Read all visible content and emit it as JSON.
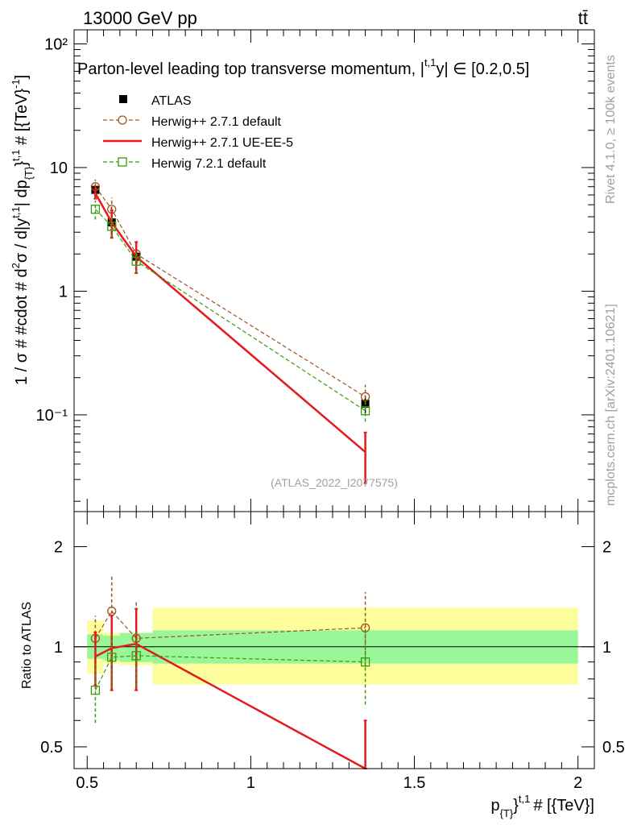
{
  "header": {
    "energy_label": "13000 GeV pp",
    "process_label": "tt̄"
  },
  "watermark": {
    "rivet": "Rivet 4.1.0, ≥ 100k events",
    "mcplots": "mcplots.cern.ch [arXiv:2401.10621]"
  },
  "chart_data": [
    {
      "type": "line",
      "panel": "main",
      "title": "Parton-level leading top transverse momentum, |y^{t,1}| ∈ [0.2,0.5]",
      "title_text": "Parton-level leading top transverse momentum, |",
      "title_sup": "t,1",
      "title_tail": "| ∈ [0.2,0.5]",
      "ylabel": "1 / σ # #cdot # d²σ / d|y^{t,1}| dp_{T}^{t,1} # [{TeV}]^{-1}",
      "ylabel_parts": {
        "a": "1 / σ # #cdot # d",
        "b": "2",
        "c": "σ / d|y",
        "d": "t,1",
        "e": "| dp",
        "f": "{T}",
        "g": "}",
        "h": "t,1",
        "i": " # [{TeV}",
        "j": "-1",
        "k": "]"
      },
      "yscale": "log",
      "ylim": [
        0.0165,
        130
      ],
      "xlim": [
        0.46,
        2.05
      ],
      "ytick_labels": [
        "10²",
        "10",
        "1",
        "10⁻¹"
      ],
      "ytick_values": [
        100,
        10,
        1,
        0.1
      ],
      "reference_label": "(ATLAS_2022_I2077575)",
      "legend_position": "top-left",
      "series": [
        {
          "name": "ATLAS",
          "style": "data",
          "color": "#000000",
          "x": [
            0.525,
            0.575,
            0.65,
            1.35
          ],
          "y": [
            6.6,
            3.6,
            1.9,
            0.123
          ],
          "yerr_lo": [
            0.5,
            0.3,
            0.2,
            0.02
          ],
          "yerr_hi": [
            0.5,
            0.3,
            0.2,
            0.02
          ]
        },
        {
          "name": "Herwig++ 2.7.1 default",
          "style": "dashed-circle",
          "color": "#a0521b",
          "x": [
            0.525,
            0.575,
            0.65,
            1.35
          ],
          "y": [
            7.0,
            4.6,
            2.0,
            0.14
          ],
          "yerr_lo": [
            0.7,
            0.9,
            0.5,
            0.03
          ],
          "yerr_hi": [
            1.0,
            1.1,
            0.5,
            0.035
          ]
        },
        {
          "name": "Herwig++ 2.7.1 UE-EE-5",
          "style": "solid",
          "color": "#e41a1c",
          "x": [
            0.525,
            0.575,
            0.65,
            1.35
          ],
          "y": [
            6.2,
            3.6,
            1.9,
            0.05
          ],
          "yerr_lo": [
            0.6,
            0.9,
            0.5,
            0.022
          ],
          "yerr_hi": [
            0.6,
            0.9,
            0.6,
            0.022
          ]
        },
        {
          "name": "Herwig 7.2.1 default",
          "style": "dashed-square",
          "color": "#3a9a0c",
          "x": [
            0.525,
            0.575,
            0.65,
            1.35
          ],
          "y": [
            4.6,
            3.35,
            1.75,
            0.108
          ],
          "yerr_lo": [
            0.8,
            0.6,
            0.35,
            0.02
          ],
          "yerr_hi": [
            0.8,
            0.6,
            0.35,
            0.02
          ]
        }
      ]
    },
    {
      "type": "line",
      "panel": "ratio",
      "ylabel": "Ratio to ATLAS",
      "xlabel": "p_{T}^{t,1} # [{TeV}]",
      "xlabel_parts": {
        "a": "p",
        "b": "{T}",
        "c": "}",
        "d": "t,1",
        "e": "# [{TeV}]"
      },
      "yscale": "log",
      "ylim": [
        0.43,
        2.55
      ],
      "xlim": [
        0.46,
        2.05
      ],
      "ytick_labels": [
        "2",
        "1",
        "0.5"
      ],
      "ytick_values": [
        2,
        1,
        0.5
      ],
      "xtick_labels": [
        "0.5",
        "1",
        "1.5",
        "2"
      ],
      "xtick_values": [
        0.5,
        1.0,
        1.5,
        2.0
      ],
      "bands": [
        {
          "x_lo": 0.5,
          "x_hi": 0.55,
          "lo1": 0.92,
          "hi1": 1.09,
          "lo2": 0.83,
          "hi2": 1.2
        },
        {
          "x_lo": 0.55,
          "x_hi": 0.6,
          "lo1": 0.91,
          "hi1": 1.08,
          "lo2": 0.89,
          "hi2": 1.1
        },
        {
          "x_lo": 0.6,
          "x_hi": 0.7,
          "lo1": 0.9,
          "hi1": 1.1,
          "lo2": 0.88,
          "hi2": 1.1
        },
        {
          "x_lo": 0.7,
          "x_hi": 2.0,
          "lo1": 0.89,
          "hi1": 1.12,
          "lo2": 0.77,
          "hi2": 1.31
        }
      ],
      "series": [
        {
          "name": "Herwig++ 2.7.1 default",
          "style": "dashed-circle",
          "color": "#a0521b",
          "x": [
            0.525,
            0.575,
            0.65,
            1.35
          ],
          "y": [
            1.06,
            1.28,
            1.06,
            1.14
          ],
          "yerr_lo": [
            0.16,
            0.36,
            0.29,
            0.27
          ],
          "yerr_hi": [
            0.18,
            0.35,
            0.31,
            0.32
          ]
        },
        {
          "name": "Herwig++ 2.7.1 UE-EE-5",
          "style": "solid",
          "color": "#e41a1c",
          "x": [
            0.525,
            0.575,
            0.65,
            1.35
          ],
          "y": [
            0.935,
            0.99,
            1.02,
            0.41
          ],
          "yerr_lo": [
            0.17,
            0.25,
            0.28,
            0.0
          ],
          "yerr_hi": [
            0.17,
            0.25,
            0.28,
            0.19
          ]
        },
        {
          "name": "Herwig 7.2.1 default",
          "style": "dashed-square",
          "color": "#3a9a0c",
          "x": [
            0.525,
            0.575,
            0.65,
            1.35
          ],
          "y": [
            0.74,
            0.93,
            0.94,
            0.9
          ],
          "yerr_lo": [
            0.15,
            0.18,
            0.18,
            0.23
          ],
          "yerr_hi": [
            0.15,
            0.17,
            0.18,
            0.23
          ]
        }
      ]
    }
  ]
}
